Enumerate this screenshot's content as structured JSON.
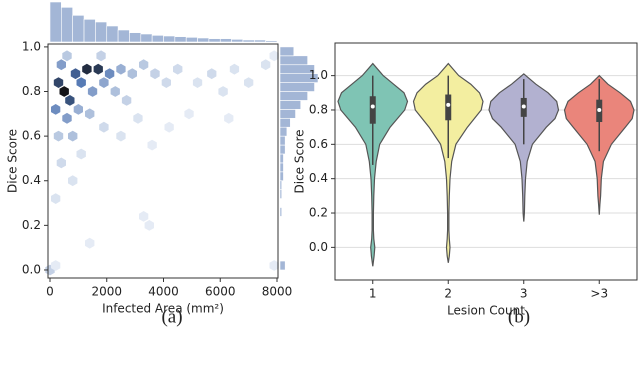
{
  "chart_data": [
    {
      "type": "hexbin",
      "xlabel": "Infected Area (mm²)",
      "ylabel": "Dice Score",
      "xlim": [
        -70,
        8035
      ],
      "xticks": [
        0,
        2000,
        4000,
        6000,
        8000
      ],
      "ylim": [
        -0.036,
        1.013
      ],
      "yticks": [
        {
          "value": 0,
          "label": "0.0"
        },
        0.2,
        0.4,
        0.6,
        0.8,
        {
          "value": 1,
          "label": "1.0"
        }
      ],
      "color": "#4c72b0",
      "hist_color": "#a3b6d6",
      "cells": {
        "x": [
          500,
          300,
          700,
          900,
          1300,
          1700,
          1100,
          200,
          600,
          400,
          2100,
          2500,
          1500,
          1900,
          2300,
          2900,
          3300,
          800,
          300,
          1000,
          1400,
          2700,
          3700,
          4100,
          4500,
          5200,
          5700,
          6100,
          6500,
          7000,
          7600,
          7900,
          1800,
          600,
          400,
          800,
          1100,
          200,
          1900,
          2500,
          3100,
          3600,
          4200,
          3300,
          3500,
          1400,
          0,
          200,
          7900,
          4900,
          6300
        ],
        "y": [
          0.8,
          0.84,
          0.76,
          0.88,
          0.9,
          0.9,
          0.84,
          0.72,
          0.68,
          0.92,
          0.88,
          0.9,
          0.8,
          0.84,
          0.8,
          0.88,
          0.92,
          0.6,
          0.6,
          0.72,
          0.7,
          0.76,
          0.88,
          0.84,
          0.9,
          0.84,
          0.88,
          0.8,
          0.9,
          0.84,
          0.92,
          0.96,
          0.96,
          0.96,
          0.48,
          0.4,
          0.52,
          0.32,
          0.64,
          0.6,
          0.68,
          0.56,
          0.64,
          0.24,
          0.2,
          0.12,
          0,
          0.02,
          0.02,
          0.7,
          0.68
        ],
        "counts": [
          30,
          22,
          20,
          18,
          26,
          24,
          14,
          12,
          10,
          10,
          12,
          8,
          10,
          9,
          6,
          6,
          5,
          6,
          5,
          8,
          6,
          4,
          4,
          3,
          3,
          2,
          3,
          2,
          2,
          2,
          2,
          1,
          4,
          5,
          3,
          2,
          2,
          2,
          3,
          2,
          2,
          1,
          1,
          1,
          1,
          1,
          4,
          1,
          1,
          1,
          1
        ]
      },
      "x_hist": {
        "bins": [
          0,
          400,
          800,
          1200,
          1600,
          2000,
          2400,
          2800,
          3200,
          3600,
          4000,
          4400,
          4800,
          5200,
          5600,
          6000,
          6400,
          6800,
          7200,
          7600,
          8000
        ],
        "counts": [
          60,
          52,
          40,
          34,
          30,
          24,
          18,
          14,
          12,
          10,
          9,
          8,
          7,
          6,
          5,
          5,
          4,
          3,
          3,
          2
        ]
      },
      "y_hist": {
        "bins": [
          0,
          0.04,
          0.08,
          0.12,
          0.16,
          0.2,
          0.24,
          0.28,
          0.32,
          0.36,
          0.4,
          0.44,
          0.48,
          0.52,
          0.56,
          0.6,
          0.64,
          0.68,
          0.72,
          0.76,
          0.8,
          0.84,
          0.88,
          0.92,
          0.96,
          1.0
        ],
        "counts": [
          3,
          0,
          0,
          0,
          0,
          0,
          1,
          0,
          1,
          1,
          2,
          2,
          2,
          3,
          3,
          4,
          6,
          9,
          12,
          16,
          20,
          22,
          20,
          16,
          8
        ]
      }
    },
    {
      "type": "violin",
      "xlabel": "Lesion Count",
      "ylabel": "Dice Score",
      "categories": [
        "1",
        "2",
        "3",
        ">3"
      ],
      "ylim": [
        -0.19,
        1.19
      ],
      "yticks": [
        {
          "value": 0,
          "label": "0.0"
        },
        0.2,
        0.4,
        0.6,
        0.8,
        {
          "value": 1,
          "label": "1.0"
        }
      ],
      "grid": true,
      "violins": [
        {
          "color": "#7fc4b4",
          "y": [
            -0.11,
            -0.05,
            0,
            0.05,
            0.1,
            0.2,
            0.3,
            0.4,
            0.5,
            0.6,
            0.7,
            0.8,
            0.85,
            0.9,
            0.95,
            1.0,
            1.07
          ],
          "half_width": [
            0,
            0.04,
            0.06,
            0.03,
            0.02,
            0.02,
            0.03,
            0.05,
            0.1,
            0.2,
            0.5,
            0.92,
            1.0,
            0.9,
            0.6,
            0.3,
            0
          ],
          "whisker": [
            0.48,
            1.0
          ],
          "q1": 0.72,
          "median": 0.82,
          "q3": 0.88
        },
        {
          "color": "#f3eea0",
          "y": [
            -0.09,
            -0.05,
            0,
            0.05,
            0.1,
            0.2,
            0.3,
            0.4,
            0.5,
            0.6,
            0.7,
            0.8,
            0.85,
            0.9,
            0.95,
            1.0,
            1.07
          ],
          "half_width": [
            0,
            0.03,
            0.05,
            0.03,
            0.02,
            0.02,
            0.03,
            0.05,
            0.1,
            0.22,
            0.55,
            0.95,
            1.0,
            0.9,
            0.65,
            0.3,
            0
          ],
          "whisker": [
            0.52,
            1.0
          ],
          "q1": 0.74,
          "median": 0.83,
          "q3": 0.89
        },
        {
          "color": "#b2b1d0",
          "y": [
            0.15,
            0.2,
            0.3,
            0.4,
            0.5,
            0.6,
            0.7,
            0.75,
            0.8,
            0.85,
            0.9,
            0.95,
            1.01
          ],
          "half_width": [
            0,
            0.02,
            0.03,
            0.05,
            0.1,
            0.25,
            0.65,
            0.9,
            1.0,
            0.95,
            0.7,
            0.35,
            0
          ],
          "whisker": [
            0.6,
            0.98
          ],
          "q1": 0.76,
          "median": 0.82,
          "q3": 0.87
        },
        {
          "color": "#ea857b",
          "y": [
            0.19,
            0.25,
            0.3,
            0.4,
            0.5,
            0.6,
            0.7,
            0.75,
            0.8,
            0.85,
            0.9,
            0.95,
            1.0
          ],
          "half_width": [
            0,
            0.02,
            0.04,
            0.06,
            0.12,
            0.35,
            0.75,
            0.95,
            1.0,
            0.9,
            0.6,
            0.25,
            0
          ],
          "whisker": [
            0.56,
            0.98
          ],
          "q1": 0.73,
          "median": 0.8,
          "q3": 0.86
        }
      ]
    }
  ],
  "captions": [
    "(a)",
    "(b)"
  ]
}
